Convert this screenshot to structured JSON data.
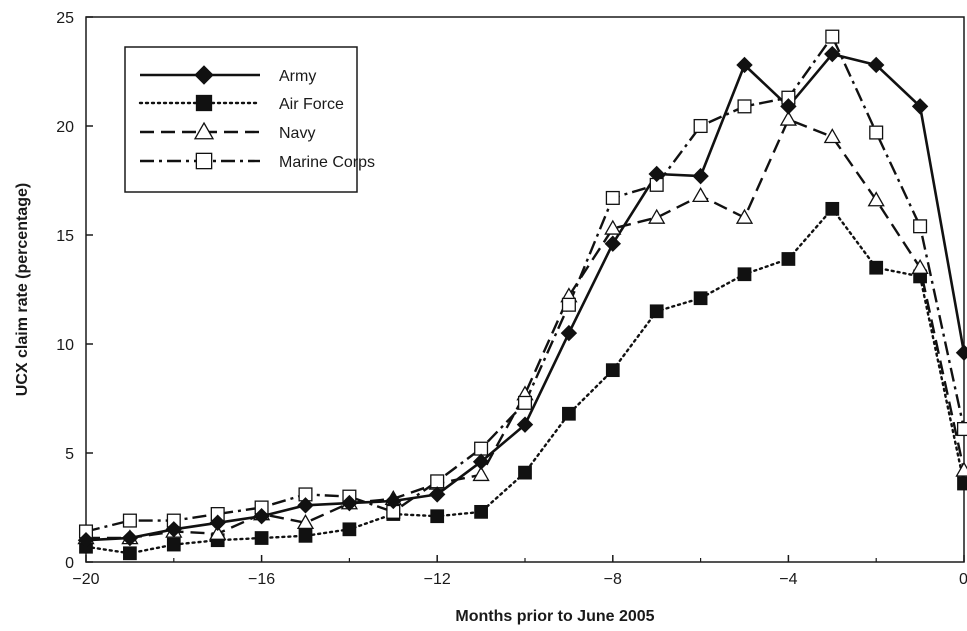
{
  "chart_data": {
    "type": "line",
    "title": "",
    "xlabel": "Months prior to June 2005",
    "ylabel": "UCX claim rate (percentage)",
    "xlim": [
      -20,
      0
    ],
    "ylim": [
      0,
      25
    ],
    "xticks": [
      -20,
      -16,
      -12,
      -8,
      -4,
      0
    ],
    "xtick_labels": [
      "−20",
      "−16",
      "−12",
      "−8",
      "−4",
      "0"
    ],
    "yticks": [
      0,
      5,
      10,
      15,
      20,
      25
    ],
    "ytick_labels": [
      "0",
      "5",
      "10",
      "15",
      "20",
      "25"
    ],
    "grid": false,
    "legend_position": "top-left",
    "x": [
      -20,
      -19,
      -18,
      -17,
      -16,
      -15,
      -14,
      -13,
      -12,
      -11,
      -10,
      -9,
      -8,
      -7,
      -6,
      -5,
      -4,
      -3,
      -2,
      -1,
      0
    ],
    "series": [
      {
        "name": "Army",
        "line_style": "solid",
        "marker": "diamond-filled",
        "values": [
          1.0,
          1.1,
          1.5,
          1.8,
          2.1,
          2.6,
          2.7,
          2.8,
          3.1,
          4.6,
          6.3,
          10.5,
          14.6,
          17.8,
          17.7,
          22.8,
          20.9,
          23.3,
          22.8,
          20.9,
          9.6
        ]
      },
      {
        "name": "Air Force",
        "line_style": "dotted",
        "marker": "square-filled",
        "values": [
          0.7,
          0.4,
          0.8,
          1.0,
          1.1,
          1.2,
          1.5,
          2.2,
          2.1,
          2.3,
          4.1,
          6.8,
          8.8,
          11.5,
          12.1,
          13.2,
          13.9,
          16.2,
          13.5,
          13.1,
          3.6
        ]
      },
      {
        "name": "Navy",
        "line_style": "dashed",
        "marker": "triangle-open",
        "values": [
          1.1,
          1.1,
          1.4,
          1.3,
          2.2,
          1.8,
          2.7,
          2.9,
          3.6,
          4.0,
          7.7,
          12.2,
          15.3,
          15.8,
          16.8,
          15.8,
          20.3,
          19.5,
          16.6,
          13.5,
          4.2
        ]
      },
      {
        "name": "Marine Corps",
        "line_style": "dash-dot",
        "marker": "square-open",
        "values": [
          1.4,
          1.9,
          1.9,
          2.2,
          2.5,
          3.1,
          3.0,
          2.3,
          3.7,
          5.2,
          7.3,
          11.8,
          16.7,
          17.3,
          20.0,
          20.9,
          21.3,
          24.1,
          19.7,
          15.4,
          6.1
        ]
      }
    ]
  }
}
